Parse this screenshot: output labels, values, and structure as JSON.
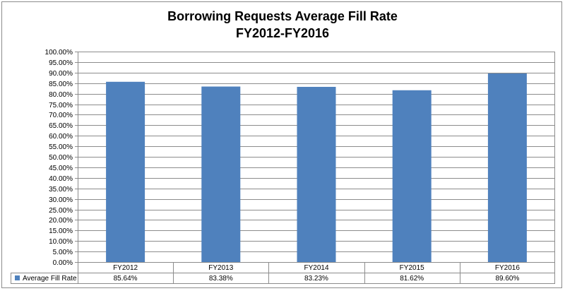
{
  "chart_data": {
    "type": "bar",
    "title": "Borrowing Requests Average Fill Rate",
    "subtitle": "FY2012-FY2016",
    "categories": [
      "FY2012",
      "FY2013",
      "FY2014",
      "FY2015",
      "FY2016"
    ],
    "series": [
      {
        "name": "Average Fill Rate",
        "values": [
          85.64,
          83.38,
          83.23,
          81.62,
          89.6
        ],
        "labels": [
          "85.64%",
          "83.38%",
          "83.23%",
          "81.62%",
          "89.60%"
        ],
        "color": "#4f81bd"
      }
    ],
    "ylim": [
      0,
      100
    ],
    "yticks": [
      "0.00%",
      "5.00%",
      "10.00%",
      "15.00%",
      "20.00%",
      "25.00%",
      "30.00%",
      "35.00%",
      "40.00%",
      "45.00%",
      "50.00%",
      "55.00%",
      "60.00%",
      "65.00%",
      "70.00%",
      "75.00%",
      "80.00%",
      "85.00%",
      "90.00%",
      "95.00%",
      "100.00%"
    ],
    "grid": true,
    "legend": "data-table",
    "xlabel": "",
    "ylabel": ""
  }
}
